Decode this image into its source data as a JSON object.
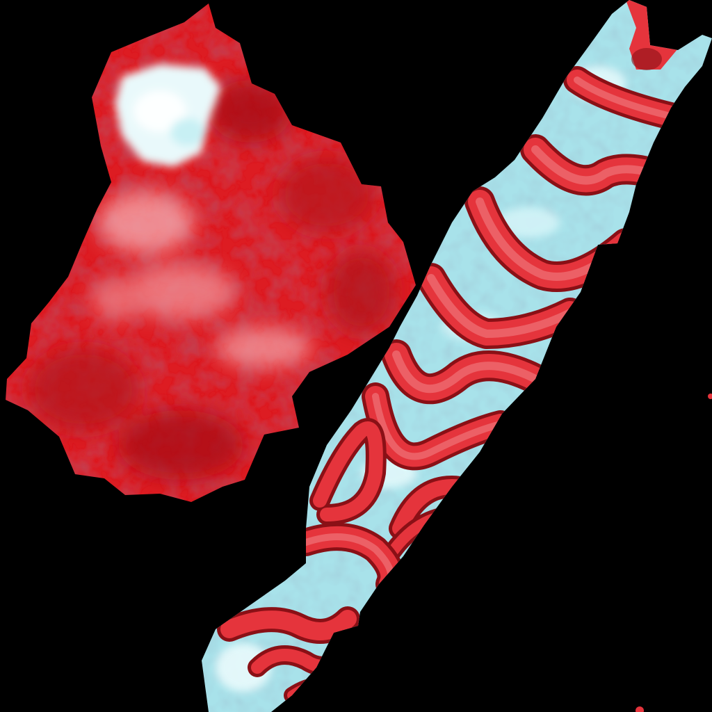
{
  "scene": {
    "background_color": "#000000",
    "shapes": [
      {
        "name": "red-textured-blob",
        "colors": {
          "base": "#dd1c22",
          "dark": "#a50f16",
          "mid": "#e8343a",
          "highlight": "#f4a6aa",
          "ice": "#dff6f7"
        }
      },
      {
        "name": "striped-diagonal-strip",
        "colors": {
          "ice": "#a8e2ea",
          "ice_light": "#e6fafc",
          "red": "#e5343c",
          "red_light": "#f07478",
          "outline": "#8a1016"
        }
      }
    ]
  }
}
